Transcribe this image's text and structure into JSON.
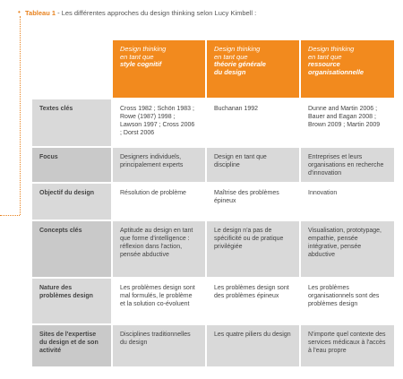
{
  "caption": {
    "bullet": "•",
    "title": "Tableau 1",
    "rest": " - Les différentes approches du design thinking selon Lucy Kimbell :"
  },
  "headers": [
    {
      "line1": "Design thinking",
      "line2": "en tant que",
      "line3": "style cognitif",
      "line4": ""
    },
    {
      "line1": "Design thinking",
      "line2": "en tant que",
      "line3": "théorie générale",
      "line4": "du design"
    },
    {
      "line1": "Design thinking",
      "line2": "en tant que",
      "line3": "ressource",
      "line4": "organisationnelle"
    }
  ],
  "rows": [
    {
      "label": "Textes clés",
      "cells": [
        "Cross 1982 ; Schön 1983 ; Rowe (1987) 1998 ; Lawson 1997 ; Cross 2006 ; Dorst 2006",
        "Buchanan 1992",
        "Dunne and Martin 2006 ; Bauer and Eagan 2008 ; Brown 2009 ; Martin 2009"
      ]
    },
    {
      "label": "Focus",
      "cells": [
        "Designers individuels, principalement experts",
        "Design en tant que discipline",
        "Entreprises et leurs organisations en recherche d'innovation"
      ]
    },
    {
      "label": "Objectif du design",
      "cells": [
        "Résolution de problème",
        "Maîtrise des problèmes épineux",
        "Innovation"
      ]
    },
    {
      "label": "Concepts clés",
      "cells": [
        "Aptitude au design en tant que forme d'intelligence : réflexion dans l'action, pensée abductive",
        "Le design n'a pas de spécificité ou de pratique privilégiée",
        "Visualisation, prototypage, empathie, pensée intégrative, pensée abductive"
      ]
    },
    {
      "label": "Nature des problèmes design",
      "cells": [
        "Les problèmes design sont mal formulés, le problème et la solution co-évoluent",
        "Les problèmes design sont des problèmes épineux",
        "Les problèmes organisationnels sont des problèmes design"
      ]
    },
    {
      "label": "Sites de l'expertise du design et de son activité",
      "cells": [
        "Disciplines traditionnelles du design",
        "Les quatre piliers du design",
        "N'importe quel contexte des services médicaux à l'accès à l'eau propre"
      ]
    }
  ],
  "colors": {
    "accent": "#f28a1e",
    "row_shade": "#d9d9d9"
  }
}
